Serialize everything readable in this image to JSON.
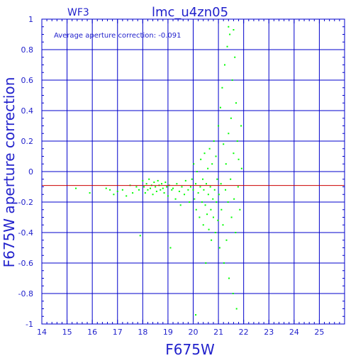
{
  "colors": {
    "frame": "#0000cc",
    "grid": "#0000cc",
    "text": "#2222cc",
    "points": "#00ff00",
    "average_line": "#cc0000"
  },
  "chart_data": {
    "type": "scatter",
    "title": "lmc_u4zn05",
    "chip_label": "WF3",
    "annotation": "Average aperture correction:  -0.091",
    "xlabel": "F675W",
    "ylabel": "F675W aperture correction",
    "xlim": [
      14,
      26
    ],
    "ylim": [
      -1,
      1
    ],
    "x_ticks": [
      "14",
      "15",
      "16",
      "17",
      "18",
      "19",
      "20",
      "21",
      "22",
      "23",
      "24",
      "25"
    ],
    "y_ticks": [
      "1",
      "0.8",
      "0.6",
      "0.4",
      "0.2",
      "0",
      "-0.2",
      "-0.4",
      "-0.6",
      "-0.8",
      "-1"
    ],
    "grid": true,
    "average_correction": -0.091,
    "points": [
      [
        15.35,
        -0.11
      ],
      [
        15.9,
        -0.14
      ],
      [
        16.55,
        -0.11
      ],
      [
        16.7,
        -0.12
      ],
      [
        16.85,
        -0.15
      ],
      [
        17.0,
        -0.13
      ],
      [
        17.2,
        -0.12
      ],
      [
        17.35,
        -0.16
      ],
      [
        17.5,
        -0.09
      ],
      [
        17.6,
        -0.14
      ],
      [
        17.75,
        -0.1
      ],
      [
        17.85,
        -0.12
      ],
      [
        17.9,
        -0.42
      ],
      [
        18.0,
        -0.06
      ],
      [
        18.05,
        -0.1
      ],
      [
        18.1,
        -0.14
      ],
      [
        18.15,
        -0.08
      ],
      [
        18.2,
        -0.12
      ],
      [
        18.25,
        -0.05
      ],
      [
        18.3,
        -0.11
      ],
      [
        18.35,
        -0.09
      ],
      [
        18.4,
        -0.15
      ],
      [
        18.45,
        -0.07
      ],
      [
        18.5,
        -0.1
      ],
      [
        18.55,
        -0.13
      ],
      [
        18.6,
        -0.06
      ],
      [
        18.65,
        -0.09
      ],
      [
        18.7,
        -0.12
      ],
      [
        18.75,
        -0.08
      ],
      [
        18.8,
        -0.11
      ],
      [
        18.85,
        -0.14
      ],
      [
        18.9,
        -0.07
      ],
      [
        18.95,
        -0.1
      ],
      [
        19.0,
        -0.16
      ],
      [
        19.05,
        -0.09
      ],
      [
        19.1,
        -0.5
      ],
      [
        19.15,
        -0.12
      ],
      [
        19.2,
        -0.11
      ],
      [
        19.3,
        -0.18
      ],
      [
        19.35,
        -0.08
      ],
      [
        19.45,
        -0.13
      ],
      [
        19.5,
        -0.22
      ],
      [
        19.55,
        -0.1
      ],
      [
        19.65,
        -0.15
      ],
      [
        19.7,
        -0.06
      ],
      [
        19.8,
        -0.12
      ],
      [
        19.85,
        -0.2
      ],
      [
        19.9,
        -0.1
      ],
      [
        19.95,
        -0.05
      ],
      [
        20.0,
        -0.12
      ],
      [
        20.02,
        0.05
      ],
      [
        20.05,
        -0.18
      ],
      [
        20.1,
        -0.08
      ],
      [
        20.12,
        -0.25
      ],
      [
        20.15,
        0.0
      ],
      [
        20.2,
        -0.14
      ],
      [
        20.25,
        -0.3
      ],
      [
        20.28,
        -0.1
      ],
      [
        20.3,
        0.08
      ],
      [
        20.35,
        -0.2
      ],
      [
        20.38,
        -0.05
      ],
      [
        20.4,
        -0.35
      ],
      [
        20.42,
        -0.12
      ],
      [
        20.45,
        0.12
      ],
      [
        20.48,
        -0.22
      ],
      [
        20.5,
        -0.6
      ],
      [
        20.52,
        -0.08
      ],
      [
        20.55,
        -0.28
      ],
      [
        20.58,
        0.02
      ],
      [
        20.6,
        -0.15
      ],
      [
        20.62,
        -0.38
      ],
      [
        20.65,
        0.15
      ],
      [
        20.68,
        -0.1
      ],
      [
        20.7,
        -0.25
      ],
      [
        20.72,
        -0.45
      ],
      [
        20.75,
        0.05
      ],
      [
        20.78,
        -0.18
      ],
      [
        20.8,
        -0.3
      ],
      [
        20.82,
        0.2
      ],
      [
        20.85,
        -0.12
      ],
      [
        20.88,
        -0.4
      ],
      [
        20.9,
        0.1
      ],
      [
        20.92,
        -0.2
      ],
      [
        20.95,
        -0.05
      ],
      [
        20.98,
        -0.32
      ],
      [
        21.0,
        0.3
      ],
      [
        21.02,
        -0.15
      ],
      [
        21.05,
        -0.5
      ],
      [
        21.08,
        0.42
      ],
      [
        21.1,
        -0.08
      ],
      [
        21.12,
        -0.25
      ],
      [
        21.15,
        0.55
      ],
      [
        21.18,
        -0.35
      ],
      [
        21.2,
        0.18
      ],
      [
        21.22,
        -0.6
      ],
      [
        21.25,
        0.7
      ],
      [
        21.28,
        -0.12
      ],
      [
        21.3,
        0.05
      ],
      [
        21.32,
        -0.45
      ],
      [
        21.35,
        0.82
      ],
      [
        21.38,
        -0.2
      ],
      [
        21.4,
        0.25
      ],
      [
        21.42,
        -0.7
      ],
      [
        21.45,
        0.9
      ],
      [
        21.48,
        -0.05
      ],
      [
        21.5,
        0.35
      ],
      [
        21.52,
        -0.3
      ],
      [
        21.55,
        0.6
      ],
      [
        21.58,
        -0.8
      ],
      [
        21.6,
        0.12
      ],
      [
        21.62,
        -0.18
      ],
      [
        21.65,
        0.75
      ],
      [
        21.68,
        -0.4
      ],
      [
        21.7,
        0.45
      ],
      [
        21.72,
        -0.9
      ],
      [
        21.75,
        0.2
      ],
      [
        21.78,
        -0.1
      ],
      [
        21.8,
        0.08
      ],
      [
        21.85,
        -0.25
      ],
      [
        21.9,
        0.3
      ],
      [
        21.92,
        0.02
      ],
      [
        20.1,
        -0.94
      ],
      [
        21.4,
        0.95
      ],
      [
        21.6,
        0.93
      ]
    ]
  }
}
